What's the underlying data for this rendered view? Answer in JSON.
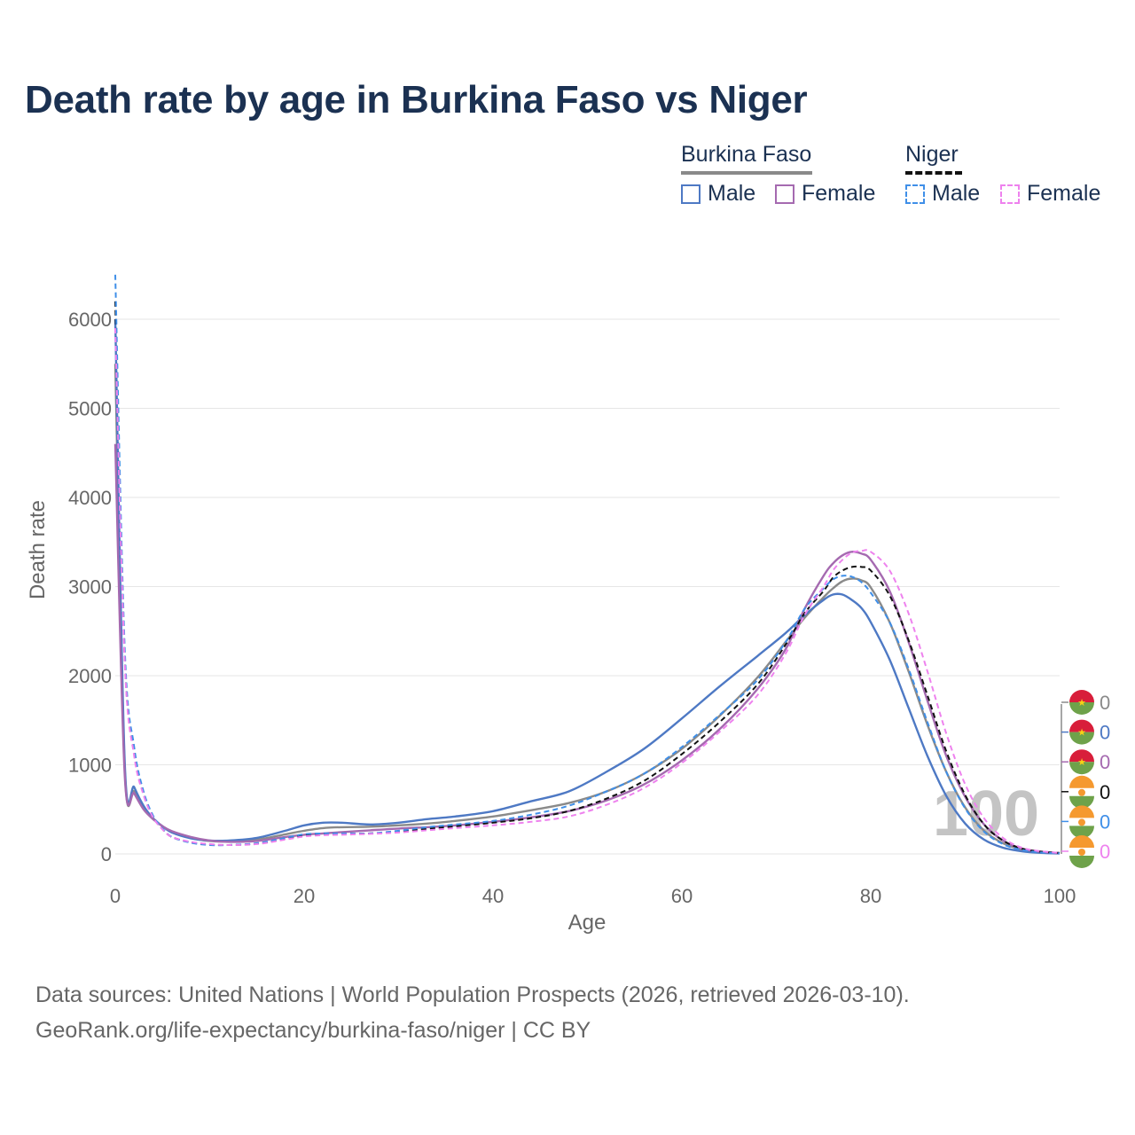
{
  "title": "Death rate by age in Burkina Faso vs Niger",
  "legend": {
    "groups": [
      {
        "name": "Burkina Faso",
        "style": "solid",
        "color": "#8a8a8a",
        "items": [
          {
            "label": "Male",
            "color": "#4e79c4"
          },
          {
            "label": "Female",
            "color": "#a56ab0"
          }
        ]
      },
      {
        "name": "Niger",
        "style": "dashed",
        "color": "#111111",
        "items": [
          {
            "label": "Male",
            "color": "#3f8fe8"
          },
          {
            "label": "Female",
            "color": "#ee82ee"
          }
        ]
      }
    ]
  },
  "footer": {
    "source": "Data sources: United Nations | World Population Prospects (2026, retrieved 2026-03-10).",
    "link": "GeoRank.org/life-expectancy/burkina-faso/niger | CC BY"
  },
  "chart_data": {
    "type": "line",
    "title": "Death rate by age in Burkina Faso vs Niger",
    "xlabel": "Age",
    "ylabel": "Death rate",
    "xlim": [
      0,
      100
    ],
    "ylim": [
      0,
      6000
    ],
    "xticks": [
      "0",
      "20",
      "40",
      "60",
      "80",
      "100"
    ],
    "yticks": [
      "0",
      "1000",
      "2000",
      "3000",
      "4000",
      "5000",
      "6000"
    ],
    "grid": true,
    "watermark": "100",
    "x": [
      0,
      1,
      2,
      3,
      4,
      5,
      6,
      8,
      10,
      12,
      15,
      18,
      20,
      22,
      24,
      27,
      30,
      33,
      36,
      40,
      44,
      48,
      52,
      56,
      60,
      64,
      68,
      71,
      73,
      75,
      76,
      77,
      78,
      79,
      80,
      82,
      84,
      86,
      88,
      90,
      92,
      94,
      96,
      98,
      100
    ],
    "series": [
      {
        "name": "Burkina Faso Total",
        "country": "Burkina Faso",
        "sex": "Total",
        "color": "#8a8a8a",
        "dash": false,
        "values": [
          5500,
          950,
          700,
          520,
          400,
          310,
          250,
          180,
          145,
          140,
          160,
          220,
          260,
          290,
          300,
          305,
          320,
          340,
          370,
          420,
          490,
          570,
          700,
          900,
          1180,
          1550,
          1980,
          2380,
          2650,
          2880,
          2980,
          3060,
          3090,
          3070,
          2990,
          2600,
          2050,
          1450,
          920,
          520,
          260,
          120,
          50,
          20,
          10
        ]
      },
      {
        "name": "Burkina Faso Male",
        "country": "Burkina Faso",
        "sex": "Male",
        "color": "#4e79c4",
        "dash": false,
        "values": [
          6000,
          1020,
          750,
          540,
          400,
          310,
          240,
          175,
          150,
          150,
          180,
          260,
          320,
          350,
          350,
          330,
          350,
          390,
          420,
          480,
          590,
          700,
          920,
          1180,
          1520,
          1880,
          2220,
          2480,
          2680,
          2850,
          2910,
          2910,
          2850,
          2760,
          2600,
          2180,
          1640,
          1100,
          650,
          340,
          160,
          70,
          30,
          12,
          5
        ]
      },
      {
        "name": "Burkina Faso Female",
        "country": "Burkina Faso",
        "sex": "Female",
        "color": "#a56ab0",
        "dash": false,
        "values": [
          4600,
          880,
          680,
          500,
          390,
          310,
          255,
          190,
          150,
          135,
          145,
          190,
          215,
          230,
          245,
          265,
          285,
          300,
          320,
          360,
          410,
          480,
          600,
          780,
          1050,
          1400,
          1850,
          2300,
          2750,
          3120,
          3260,
          3350,
          3390,
          3370,
          3300,
          2950,
          2380,
          1720,
          1100,
          640,
          330,
          150,
          60,
          25,
          10
        ]
      },
      {
        "name": "Niger Total",
        "country": "Niger",
        "sex": "Total",
        "color": "#111111",
        "dash": true,
        "values": [
          6200,
          2200,
          1150,
          680,
          420,
          280,
          190,
          130,
          105,
          100,
          115,
          170,
          210,
          225,
          225,
          230,
          250,
          280,
          310,
          350,
          400,
          480,
          620,
          820,
          1120,
          1480,
          1900,
          2350,
          2700,
          2950,
          3100,
          3180,
          3220,
          3220,
          3180,
          2900,
          2400,
          1780,
          1150,
          660,
          330,
          150,
          60,
          25,
          10
        ]
      },
      {
        "name": "Niger Male",
        "country": "Niger",
        "sex": "Male",
        "color": "#3f8fe8",
        "dash": true,
        "values": [
          6500,
          2300,
          1200,
          700,
          430,
          285,
          190,
          125,
          100,
          100,
          120,
          180,
          220,
          230,
          230,
          230,
          260,
          300,
          330,
          370,
          440,
          540,
          700,
          900,
          1200,
          1560,
          1950,
          2380,
          2750,
          2980,
          3080,
          3120,
          3110,
          3050,
          2930,
          2600,
          2080,
          1480,
          920,
          510,
          250,
          110,
          45,
          18,
          8
        ]
      },
      {
        "name": "Niger Female",
        "country": "Niger",
        "sex": "Female",
        "color": "#ee82ee",
        "dash": true,
        "values": [
          5900,
          2150,
          1100,
          660,
          410,
          275,
          190,
          135,
          110,
          100,
          110,
          160,
          195,
          210,
          215,
          225,
          240,
          265,
          290,
          320,
          360,
          420,
          550,
          740,
          1020,
          1370,
          1780,
          2250,
          2680,
          3000,
          3180,
          3300,
          3380,
          3400,
          3390,
          3180,
          2700,
          2050,
          1350,
          780,
          400,
          180,
          70,
          30,
          12
        ]
      }
    ],
    "end_labels": [
      {
        "country": "Burkina Faso",
        "value": "0",
        "color": "#8a8a8a"
      },
      {
        "country": "Burkina Faso",
        "value": "0",
        "color": "#4e79c4"
      },
      {
        "country": "Burkina Faso",
        "value": "0",
        "color": "#a56ab0"
      },
      {
        "country": "Niger",
        "value": "0",
        "color": "#111111"
      },
      {
        "country": "Niger",
        "value": "0",
        "color": "#3f8fe8"
      },
      {
        "country": "Niger",
        "value": "0",
        "color": "#ee82ee"
      }
    ]
  }
}
